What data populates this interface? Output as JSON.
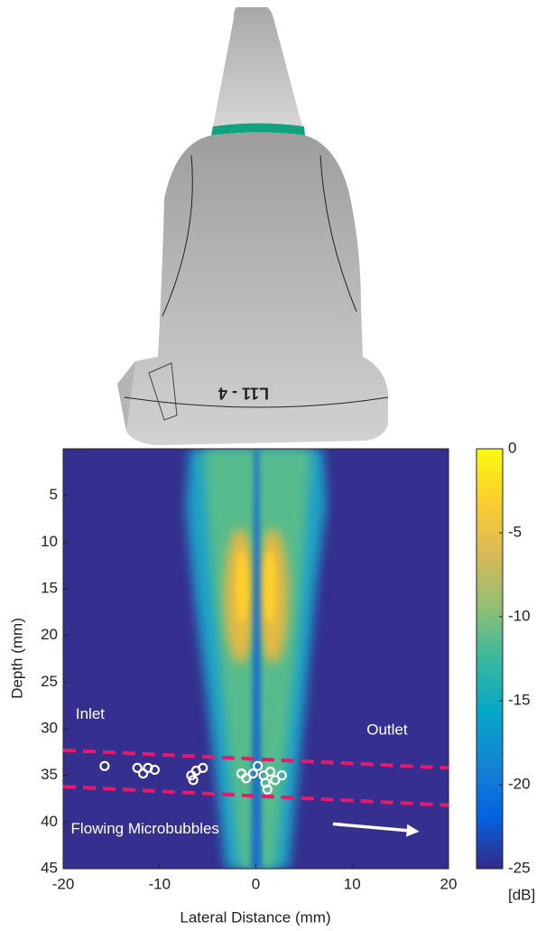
{
  "chart_data": {
    "type": "heatmap",
    "xlabel": "Lateral Distance (mm)",
    "ylabel": "Depth (mm)",
    "xlim": [
      -20,
      20
    ],
    "xticks": [
      -20,
      -10,
      0,
      10,
      20
    ],
    "ylim": [
      0,
      45
    ],
    "y_reversed": true,
    "yticks": [
      5,
      10,
      15,
      20,
      25,
      30,
      35,
      40,
      45
    ],
    "colorbar": {
      "label": "[dB]",
      "lim": [
        -25,
        0
      ],
      "ticks": [
        0,
        -5,
        -10,
        -15,
        -20,
        -25
      ],
      "colormap": [
        "#352a87",
        "#0363e1",
        "#1485d4",
        "#06a7c6",
        "#38b99e",
        "#92bf73",
        "#d9ba56",
        "#fcce2e",
        "#f9fb0e"
      ]
    },
    "scatter": {
      "color": "#ffffff",
      "x": [
        -15.7,
        -12.3,
        -11.7,
        -11.2,
        -10.5,
        -6.7,
        -6.5,
        -6.2,
        -5.5,
        -1.5,
        -1.0,
        -0.3,
        0.2,
        0.8,
        1.0,
        1.5,
        1.2,
        2.0,
        2.7
      ],
      "y": [
        34.0,
        34.2,
        34.8,
        34.2,
        34.4,
        35.0,
        35.5,
        34.5,
        34.2,
        34.8,
        35.3,
        34.8,
        34.0,
        35.0,
        35.8,
        34.6,
        36.5,
        35.5,
        35.0
      ]
    },
    "lines": [
      {
        "color": "#e8196b",
        "x": [
          -20,
          20
        ],
        "y": [
          32.3,
          34.2
        ]
      },
      {
        "color": "#e8196b",
        "x": [
          -20,
          20
        ],
        "y": [
          36.2,
          38.2
        ]
      }
    ],
    "annotations": [
      {
        "text": "Inlet",
        "x": -18.7,
        "y": 28.5
      },
      {
        "text": "Outlet",
        "x": 11.5,
        "y": 30.2
      },
      {
        "text": "Flowing Microbubbles",
        "x": -19.2,
        "y": 40.8
      }
    ],
    "arrow": {
      "color": "#ffffff",
      "x": [
        8,
        16.7
      ],
      "y": [
        40.2,
        41.0
      ]
    },
    "probe_label": "L11 - 4"
  }
}
